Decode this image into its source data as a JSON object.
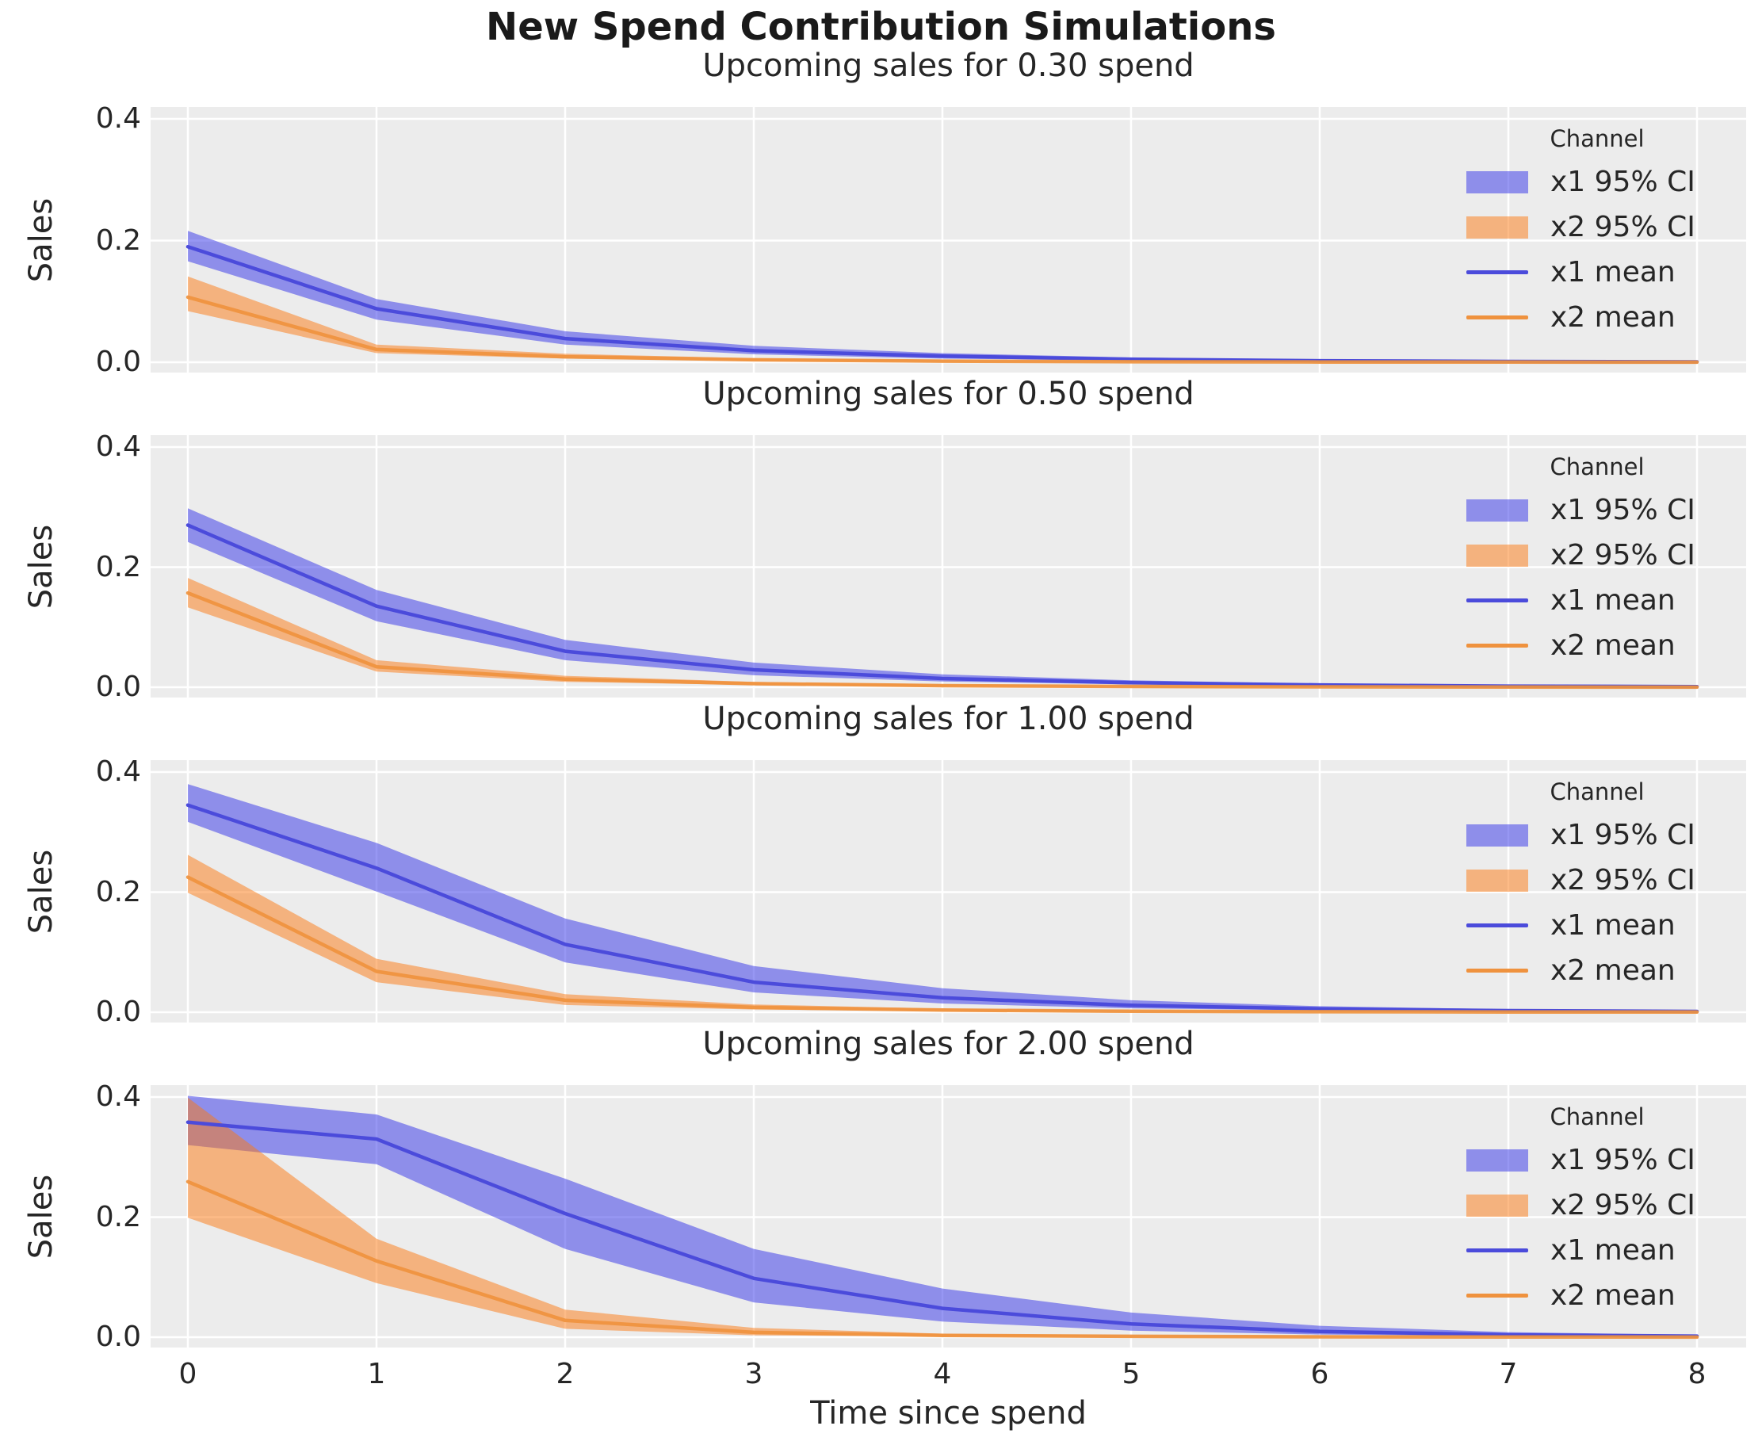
{
  "figure": {
    "title": "New Spend Contribution Simulations"
  },
  "colors": {
    "x1_line": "#4b4bdb",
    "x2_line": "#ef923e",
    "x1_band": "rgba(48,48,232,0.5)",
    "x2_band": "rgba(252,120,16,0.5)",
    "axes_bg": "#ececec",
    "grid": "#ffffff",
    "text": "#262626"
  },
  "legend": {
    "title": "Channel",
    "entries": [
      {
        "label": "x1 95% CI",
        "kind": "patch",
        "color_key": "x1_band"
      },
      {
        "label": "x2 95% CI",
        "kind": "patch",
        "color_key": "x2_band"
      },
      {
        "label": "x1 mean",
        "kind": "line",
        "color_key": "x1_line"
      },
      {
        "label": "x2 mean",
        "kind": "line",
        "color_key": "x2_line"
      }
    ]
  },
  "x_axis": {
    "label": "Time since spend",
    "ticks": [
      0,
      1,
      2,
      3,
      4,
      5,
      6,
      7,
      8
    ],
    "tick_labels": [
      "0",
      "1",
      "2",
      "3",
      "4",
      "5",
      "6",
      "7",
      "8"
    ]
  },
  "y_axis": {
    "label": "Sales",
    "ticks": [
      0.0,
      0.2,
      0.4
    ],
    "tick_labels": [
      "0.0",
      "0.2",
      "0.4"
    ]
  },
  "chart_data": [
    {
      "type": "line",
      "title": "Upcoming sales for 0.30 spend",
      "xlabel": "Time since spend",
      "ylabel": "Sales",
      "x": [
        0,
        1,
        2,
        3,
        4,
        5,
        6,
        7,
        8
      ],
      "ylim": [
        -0.017,
        0.42
      ],
      "grid": true,
      "legend_position": "upper right",
      "series": [
        {
          "name": "x1 mean",
          "color_key": "x1_line",
          "values": [
            0.19,
            0.088,
            0.039,
            0.019,
            0.01,
            0.005,
            0.0025,
            0.0013,
            0.0007
          ]
        },
        {
          "name": "x2 mean",
          "color_key": "x2_line",
          "values": [
            0.107,
            0.021,
            0.009,
            0.004,
            0.0018,
            0.0008,
            0.0004,
            0.0002,
            0.0001
          ]
        }
      ],
      "bands": [
        {
          "name": "x1 95% CI",
          "color_key": "x1_band",
          "lo": [
            0.166,
            0.07,
            0.029,
            0.013,
            0.006,
            0.003,
            0.0014,
            0.0007,
            0.0004
          ],
          "hi": [
            0.216,
            0.104,
            0.051,
            0.027,
            0.015,
            0.008,
            0.0042,
            0.0022,
            0.0012
          ]
        },
        {
          "name": "x2 95% CI",
          "color_key": "x2_band",
          "lo": [
            0.084,
            0.015,
            0.006,
            0.0022,
            0.001,
            0.0004,
            0.0002,
            0.0001,
            5e-05
          ],
          "hi": [
            0.141,
            0.029,
            0.014,
            0.0065,
            0.003,
            0.0014,
            0.0007,
            0.00035,
            0.0002
          ]
        }
      ]
    },
    {
      "type": "line",
      "title": "Upcoming sales for 0.50 spend",
      "xlabel": "Time since spend",
      "ylabel": "Sales",
      "x": [
        0,
        1,
        2,
        3,
        4,
        5,
        6,
        7,
        8
      ],
      "ylim": [
        -0.017,
        0.42
      ],
      "grid": true,
      "legend_position": "upper right",
      "series": [
        {
          "name": "x1 mean",
          "color_key": "x1_line",
          "values": [
            0.27,
            0.135,
            0.06,
            0.029,
            0.0145,
            0.0075,
            0.0038,
            0.0019,
            0.001
          ]
        },
        {
          "name": "x2 mean",
          "color_key": "x2_line",
          "values": [
            0.157,
            0.034,
            0.0135,
            0.006,
            0.0027,
            0.0013,
            0.0006,
            0.0003,
            0.00015
          ]
        }
      ],
      "bands": [
        {
          "name": "x1 95% CI",
          "color_key": "x1_band",
          "lo": [
            0.242,
            0.11,
            0.045,
            0.02,
            0.0095,
            0.0047,
            0.0022,
            0.0011,
            0.0005
          ],
          "hi": [
            0.298,
            0.162,
            0.079,
            0.041,
            0.0215,
            0.0115,
            0.006,
            0.0031,
            0.0016
          ]
        },
        {
          "name": "x2 95% CI",
          "color_key": "x2_band",
          "lo": [
            0.133,
            0.026,
            0.009,
            0.0037,
            0.0016,
            0.0007,
            0.0003,
            0.00015,
            7e-05
          ],
          "hi": [
            0.182,
            0.045,
            0.019,
            0.009,
            0.0043,
            0.0021,
            0.001,
            0.0005,
            0.00025
          ]
        }
      ]
    },
    {
      "type": "line",
      "title": "Upcoming sales for 1.00 spend",
      "xlabel": "Time since spend",
      "ylabel": "Sales",
      "x": [
        0,
        1,
        2,
        3,
        4,
        5,
        6,
        7,
        8
      ],
      "ylim": [
        -0.017,
        0.42
      ],
      "grid": true,
      "legend_position": "upper right",
      "series": [
        {
          "name": "x1 mean",
          "color_key": "x1_line",
          "values": [
            0.345,
            0.24,
            0.113,
            0.05,
            0.024,
            0.0115,
            0.0055,
            0.0027,
            0.0013
          ]
        },
        {
          "name": "x2 mean",
          "color_key": "x2_line",
          "values": [
            0.225,
            0.068,
            0.02,
            0.008,
            0.0036,
            0.0016,
            0.0008,
            0.0004,
            0.0002
          ]
        }
      ],
      "bands": [
        {
          "name": "x1 95% CI",
          "color_key": "x1_band",
          "lo": [
            0.317,
            0.201,
            0.083,
            0.033,
            0.0145,
            0.0065,
            0.003,
            0.0014,
            0.0006
          ],
          "hi": [
            0.38,
            0.282,
            0.156,
            0.077,
            0.04,
            0.02,
            0.01,
            0.005,
            0.0024
          ]
        },
        {
          "name": "x2 95% CI",
          "color_key": "x2_band",
          "lo": [
            0.199,
            0.05,
            0.012,
            0.0045,
            0.0019,
            0.0008,
            0.0004,
            0.0002,
            0.0001
          ],
          "hi": [
            0.262,
            0.089,
            0.03,
            0.013,
            0.006,
            0.0028,
            0.0014,
            0.0007,
            0.00035
          ]
        }
      ]
    },
    {
      "type": "line",
      "title": "Upcoming sales for 2.00 spend",
      "xlabel": "Time since spend",
      "ylabel": "Sales",
      "x": [
        0,
        1,
        2,
        3,
        4,
        5,
        6,
        7,
        8
      ],
      "ylim": [
        -0.017,
        0.42
      ],
      "grid": true,
      "legend_position": "upper right",
      "series": [
        {
          "name": "x1 mean",
          "color_key": "x1_line",
          "values": [
            0.358,
            0.33,
            0.206,
            0.098,
            0.048,
            0.022,
            0.0095,
            0.004,
            0.0018
          ]
        },
        {
          "name": "x2 mean",
          "color_key": "x2_line",
          "values": [
            0.259,
            0.127,
            0.028,
            0.008,
            0.003,
            0.0014,
            0.0007,
            0.00035,
            0.00018
          ]
        }
      ],
      "bands": [
        {
          "name": "x1 95% CI",
          "color_key": "x1_band",
          "lo": [
            0.32,
            0.288,
            0.147,
            0.058,
            0.026,
            0.011,
            0.0045,
            0.0018,
            0.0008
          ],
          "hi": [
            0.402,
            0.371,
            0.264,
            0.147,
            0.081,
            0.041,
            0.019,
            0.0085,
            0.0038
          ]
        },
        {
          "name": "x2 95% CI",
          "color_key": "x2_band",
          "lo": [
            0.199,
            0.09,
            0.014,
            0.0032,
            0.0012,
            0.0005,
            0.00025,
            0.0001,
            5e-05
          ],
          "hi": [
            0.399,
            0.164,
            0.046,
            0.0155,
            0.006,
            0.0028,
            0.0013,
            0.0006,
            0.0003
          ]
        }
      ]
    }
  ]
}
